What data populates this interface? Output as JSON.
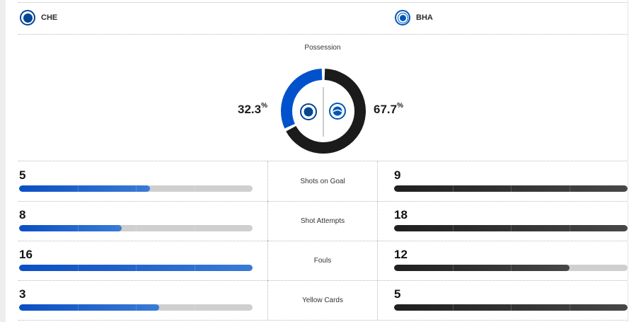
{
  "teams": {
    "home": {
      "abbr": "CHE",
      "crest_icon": "chelsea-crest-icon",
      "color": "#0b4fc4"
    },
    "away": {
      "abbr": "BHA",
      "crest_icon": "brighton-crest-icon",
      "color": "#1f1f1f"
    }
  },
  "possession": {
    "title": "Possession",
    "home_value": "32.3",
    "away_value": "67.7",
    "unit": "%",
    "home_fraction": 0.323,
    "away_fraction": 0.677
  },
  "stats": [
    {
      "label": "Shots on Goal",
      "home": "5",
      "away": "9",
      "home_fraction": 0.56,
      "away_fraction": 1.0
    },
    {
      "label": "Shot Attempts",
      "home": "8",
      "away": "18",
      "home_fraction": 0.44,
      "away_fraction": 1.0
    },
    {
      "label": "Fouls",
      "home": "16",
      "away": "12",
      "home_fraction": 1.0,
      "away_fraction": 0.75
    },
    {
      "label": "Yellow Cards",
      "home": "3",
      "away": "5",
      "home_fraction": 0.6,
      "away_fraction": 1.0
    }
  ],
  "colors": {
    "home_bar": "#0b4fc4",
    "away_bar": "#1f1f1f",
    "bar_track": "#cfcfcf",
    "home_arc": "#0052cc",
    "away_arc": "#1b1b1b"
  }
}
